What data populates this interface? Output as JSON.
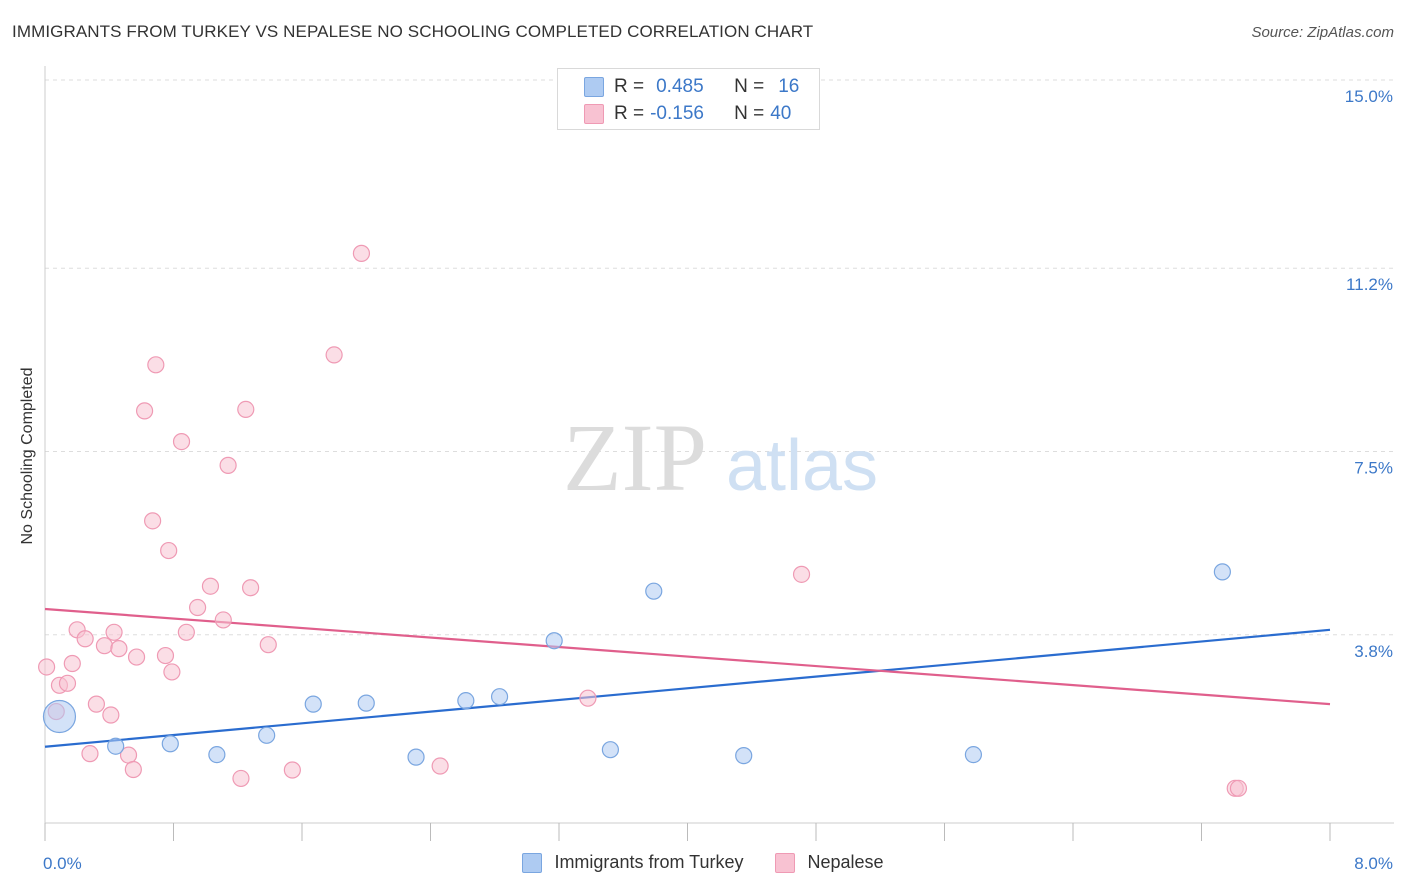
{
  "title": "IMMIGRANTS FROM TURKEY VS NEPALESE NO SCHOOLING COMPLETED CORRELATION CHART",
  "source": "Source: ZipAtlas.com",
  "watermark": {
    "zip": "ZIP",
    "atlas": "atlas"
  },
  "legend_top": {
    "rows": [
      {
        "r_label": "R =",
        "r_value": "0.485",
        "n_label": "N =",
        "n_value": "16"
      },
      {
        "r_label": "R =",
        "r_value": "-0.156",
        "n_label": "N =",
        "n_value": "40"
      }
    ]
  },
  "legend_bottom": {
    "items": [
      {
        "label": "Immigrants from Turkey"
      },
      {
        "label": "Nepalese"
      }
    ]
  },
  "colors": {
    "turkey_fill": "#aecbf2",
    "turkey_stroke": "#7aa6e0",
    "turkey_line": "#2a6ccf",
    "nepal_fill": "#f8c2d2",
    "nepal_stroke": "#ef9ab4",
    "nepal_line": "#e05f8c",
    "tick_label": "#3c78c8",
    "grid": "#dddddd"
  },
  "chart_data": {
    "type": "scatter",
    "title": "IMMIGRANTS FROM TURKEY VS NEPALESE NO SCHOOLING COMPLETED CORRELATION CHART",
    "xlabel": "",
    "ylabel": "No Schooling Completed",
    "xlim": [
      0,
      8.0
    ],
    "ylim": [
      0,
      15.0
    ],
    "x_tick_labels": [
      {
        "value": 0,
        "label": "0.0%"
      },
      {
        "value": 8.0,
        "label": "8.0%"
      }
    ],
    "y_tick_labels": [
      {
        "value": 15.0,
        "label": "15.0%"
      },
      {
        "value": 11.2,
        "label": "11.2%"
      },
      {
        "value": 7.5,
        "label": "7.5%"
      },
      {
        "value": 3.8,
        "label": "3.8%"
      }
    ],
    "grid": true,
    "legend": "top-center",
    "series": [
      {
        "name": "Immigrants from Turkey",
        "R": 0.485,
        "N": 16,
        "points": [
          {
            "x": 0.09,
            "y": 2.15,
            "large": true
          },
          {
            "x": 0.44,
            "y": 1.55
          },
          {
            "x": 0.78,
            "y": 1.6
          },
          {
            "x": 1.07,
            "y": 1.38
          },
          {
            "x": 1.38,
            "y": 1.77
          },
          {
            "x": 1.67,
            "y": 2.4
          },
          {
            "x": 2.0,
            "y": 2.42
          },
          {
            "x": 2.31,
            "y": 1.33
          },
          {
            "x": 2.62,
            "y": 2.47
          },
          {
            "x": 2.83,
            "y": 2.55
          },
          {
            "x": 3.17,
            "y": 3.68
          },
          {
            "x": 3.52,
            "y": 1.48
          },
          {
            "x": 3.79,
            "y": 4.68
          },
          {
            "x": 4.35,
            "y": 1.36
          },
          {
            "x": 5.78,
            "y": 1.38
          },
          {
            "x": 7.33,
            "y": 5.07
          }
        ],
        "trend": {
          "x0": 0,
          "y0": 1.54,
          "x1": 8.0,
          "y1": 3.9
        }
      },
      {
        "name": "Nepalese",
        "R": -0.156,
        "N": 40,
        "points": [
          {
            "x": 0.01,
            "y": 3.15
          },
          {
            "x": 0.07,
            "y": 2.25
          },
          {
            "x": 0.09,
            "y": 2.78
          },
          {
            "x": 0.14,
            "y": 2.82
          },
          {
            "x": 0.17,
            "y": 3.22
          },
          {
            "x": 0.2,
            "y": 3.9
          },
          {
            "x": 0.25,
            "y": 3.72
          },
          {
            "x": 0.28,
            "y": 1.4
          },
          {
            "x": 0.32,
            "y": 2.4
          },
          {
            "x": 0.37,
            "y": 3.58
          },
          {
            "x": 0.41,
            "y": 2.18
          },
          {
            "x": 0.43,
            "y": 3.85
          },
          {
            "x": 0.46,
            "y": 3.52
          },
          {
            "x": 0.52,
            "y": 1.37
          },
          {
            "x": 0.55,
            "y": 1.08
          },
          {
            "x": 0.57,
            "y": 3.35
          },
          {
            "x": 0.62,
            "y": 8.32
          },
          {
            "x": 0.67,
            "y": 6.1
          },
          {
            "x": 0.69,
            "y": 9.25
          },
          {
            "x": 0.75,
            "y": 3.38
          },
          {
            "x": 0.77,
            "y": 5.5
          },
          {
            "x": 0.79,
            "y": 3.05
          },
          {
            "x": 0.85,
            "y": 7.7
          },
          {
            "x": 0.88,
            "y": 3.85
          },
          {
            "x": 0.95,
            "y": 4.35
          },
          {
            "x": 1.03,
            "y": 4.78
          },
          {
            "x": 1.11,
            "y": 4.1
          },
          {
            "x": 1.14,
            "y": 7.22
          },
          {
            "x": 1.22,
            "y": 0.9
          },
          {
            "x": 1.25,
            "y": 8.35
          },
          {
            "x": 1.28,
            "y": 4.75
          },
          {
            "x": 1.39,
            "y": 3.6
          },
          {
            "x": 1.54,
            "y": 1.07
          },
          {
            "x": 1.8,
            "y": 9.45
          },
          {
            "x": 1.97,
            "y": 11.5
          },
          {
            "x": 2.46,
            "y": 1.15
          },
          {
            "x": 3.38,
            "y": 2.52
          },
          {
            "x": 4.71,
            "y": 5.02
          },
          {
            "x": 7.41,
            "y": 0.7
          },
          {
            "x": 7.43,
            "y": 0.7
          }
        ],
        "trend": {
          "x0": 0,
          "y0": 4.32,
          "x1": 8.0,
          "y1": 2.4
        }
      }
    ]
  }
}
